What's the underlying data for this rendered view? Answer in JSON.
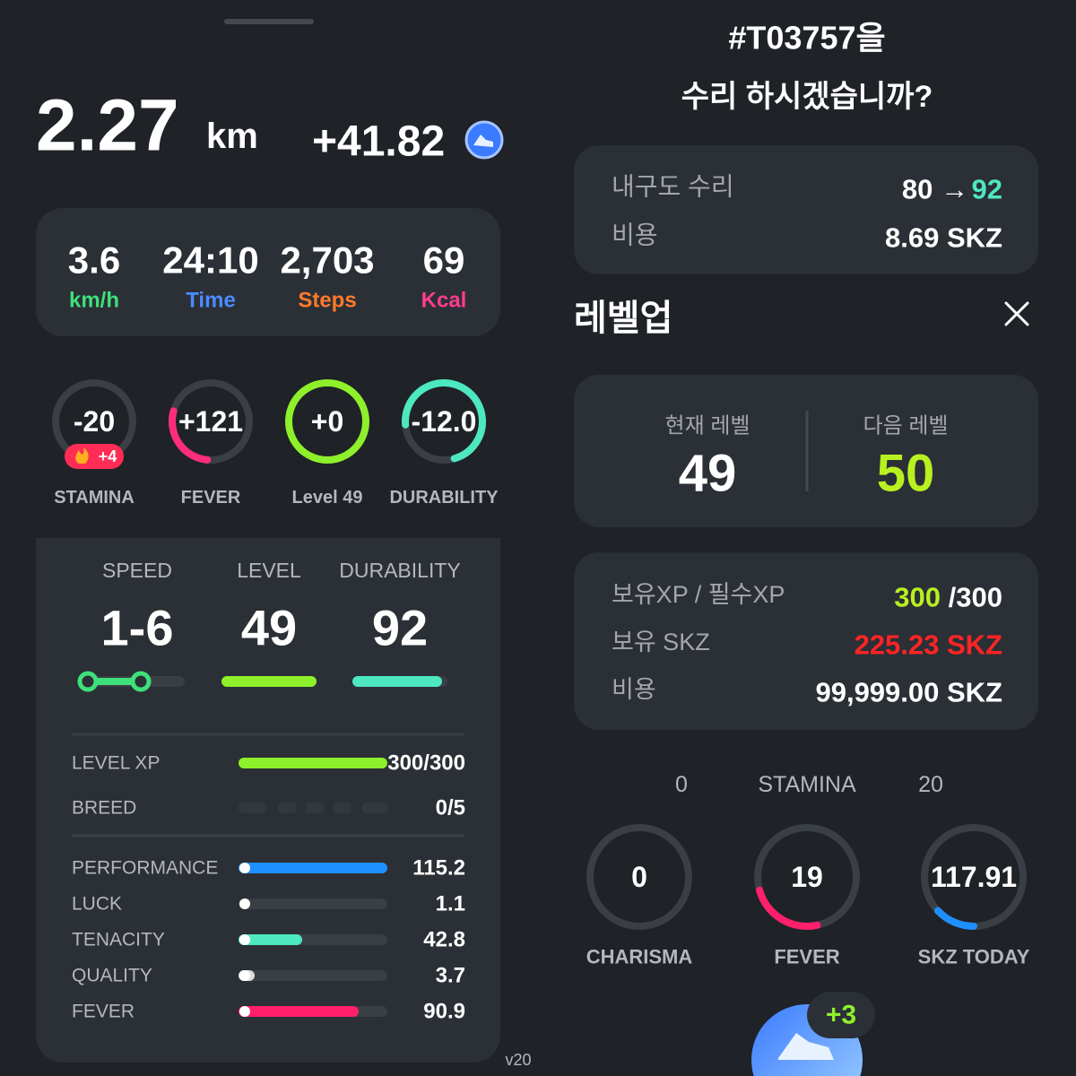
{
  "left": {
    "distance": "2.27",
    "distance_unit": "km",
    "reward": "+41.82",
    "summary": [
      {
        "value": "3.6",
        "label": "km/h"
      },
      {
        "value": "24:10",
        "label": "Time"
      },
      {
        "value": "2,703",
        "label": "Steps"
      },
      {
        "value": "69",
        "label": "Kcal"
      }
    ],
    "gauges": [
      {
        "value": "-20",
        "label": "STAMINA",
        "badge": "+4"
      },
      {
        "value": "+121",
        "label": "FEVER"
      },
      {
        "value": "+0",
        "label": "Level 49"
      },
      {
        "value": "-12.0",
        "label": "DURABILITY"
      }
    ],
    "stats": [
      {
        "label": "SPEED",
        "value": "1-6"
      },
      {
        "label": "LEVEL",
        "value": "49"
      },
      {
        "label": "DURABILITY",
        "value": "92"
      }
    ],
    "progress": [
      {
        "label": "LEVEL XP",
        "value": "300/300"
      },
      {
        "label": "BREED",
        "value": "0/5"
      }
    ],
    "attributes": [
      {
        "label": "PERFORMANCE",
        "value": "115.2"
      },
      {
        "label": "LUCK",
        "value": "1.1"
      },
      {
        "label": "TENACITY",
        "value": "42.8"
      },
      {
        "label": "QUALITY",
        "value": "3.7"
      },
      {
        "label": "FEVER",
        "value": "90.9"
      }
    ],
    "version": "v20"
  },
  "right": {
    "title": "#T03757을",
    "question": "수리 하시겠습니까?",
    "repair": {
      "label": "내구도 수리",
      "from": "80 →",
      "to": "92",
      "cost_label": "비용",
      "cost": "8.69 SKZ"
    },
    "levelup": {
      "title": "레벨업",
      "current_label": "현재 레벨",
      "current": "49",
      "next_label": "다음 레벨",
      "next": "50",
      "xp_label": "보유XP / 필수XP",
      "xp_have": "300",
      "xp_need": "/300",
      "skz_label": "보유 SKZ",
      "skz": "225.23 SKZ",
      "cost_label": "비용",
      "cost": "99,999.00 SKZ"
    },
    "behind": {
      "scale_min": "0",
      "stamina_label": "STAMINA",
      "scale_max": "20",
      "gauges": [
        {
          "value": "0",
          "label": "CHARISMA"
        },
        {
          "value": "19",
          "label": "FEVER"
        },
        {
          "value": "117.91",
          "label": "SKZ TODAY"
        }
      ],
      "badge": "+3"
    }
  }
}
